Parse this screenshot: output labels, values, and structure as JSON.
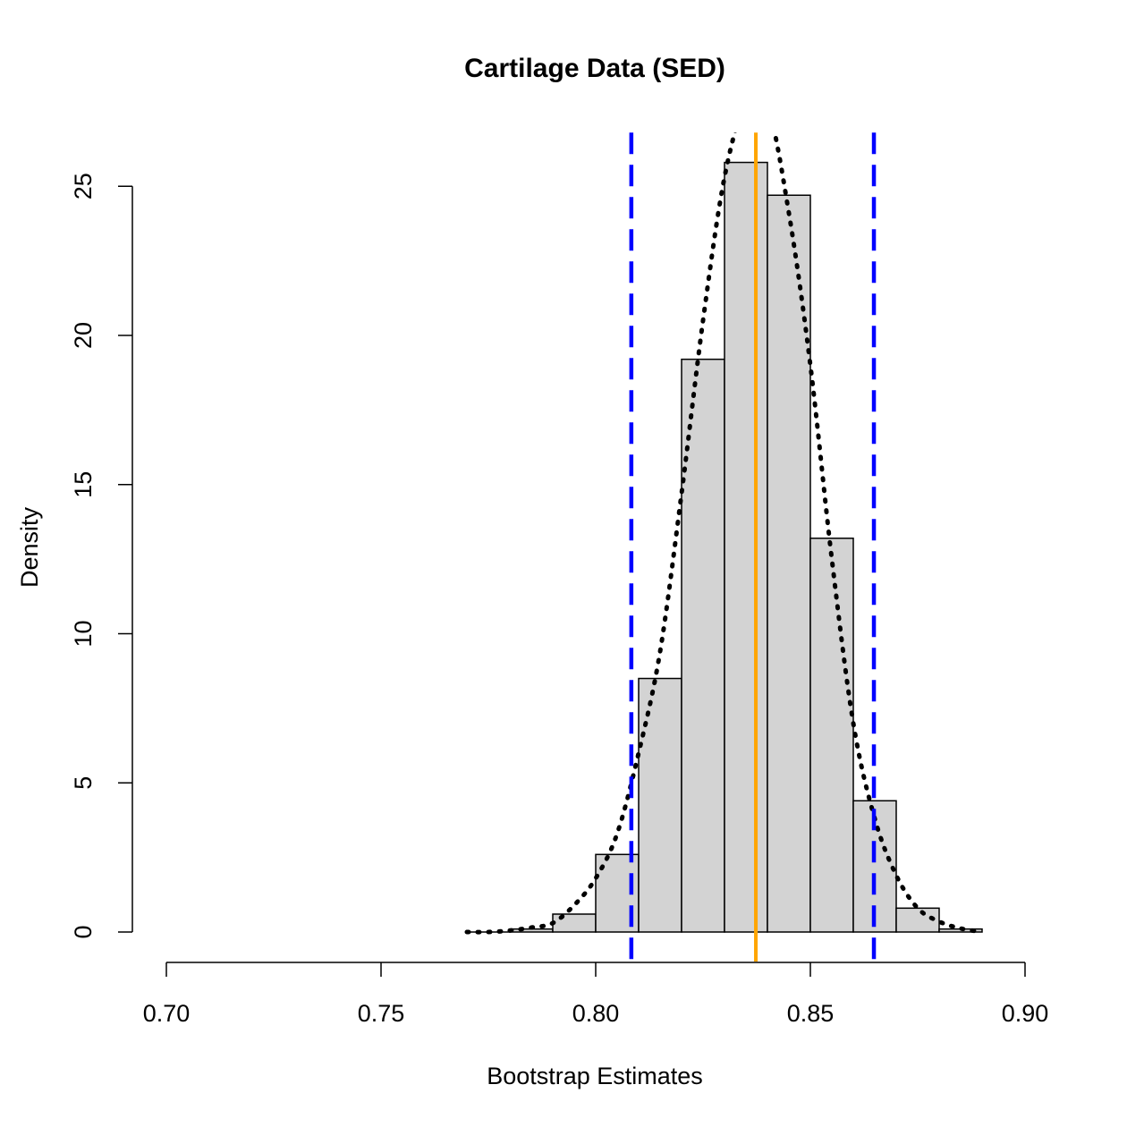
{
  "chart_data": {
    "type": "histogram",
    "title": "Cartilage Data (SED)",
    "xlabel": "Bootstrap Estimates",
    "ylabel": "Density",
    "xlim": [
      0.7,
      0.9
    ],
    "ylim": [
      0,
      26.8
    ],
    "x_ticks": [
      0.7,
      0.75,
      0.8,
      0.85,
      0.9
    ],
    "x_tick_labels": [
      "0.70",
      "0.75",
      "0.80",
      "0.85",
      "0.90"
    ],
    "y_ticks": [
      0,
      5,
      10,
      15,
      20,
      25
    ],
    "y_tick_labels": [
      "0",
      "5",
      "10",
      "15",
      "20",
      "25"
    ],
    "grid": false,
    "bins": [
      {
        "x0": 0.77,
        "x1": 0.78,
        "density": 0.0
      },
      {
        "x0": 0.78,
        "x1": 0.79,
        "density": 0.1
      },
      {
        "x0": 0.79,
        "x1": 0.8,
        "density": 0.6
      },
      {
        "x0": 0.8,
        "x1": 0.81,
        "density": 2.6
      },
      {
        "x0": 0.81,
        "x1": 0.82,
        "density": 8.5
      },
      {
        "x0": 0.82,
        "x1": 0.83,
        "density": 19.2
      },
      {
        "x0": 0.83,
        "x1": 0.84,
        "density": 25.8
      },
      {
        "x0": 0.84,
        "x1": 0.85,
        "density": 24.7
      },
      {
        "x0": 0.85,
        "x1": 0.86,
        "density": 13.2
      },
      {
        "x0": 0.86,
        "x1": 0.87,
        "density": 4.4
      },
      {
        "x0": 0.87,
        "x1": 0.88,
        "density": 0.8
      },
      {
        "x0": 0.88,
        "x1": 0.89,
        "density": 0.1
      }
    ],
    "density_curve": {
      "x": [
        0.77,
        0.775,
        0.78,
        0.785,
        0.79,
        0.795,
        0.8,
        0.805,
        0.81,
        0.815,
        0.82,
        0.825,
        0.83,
        0.835,
        0.84,
        0.845,
        0.85,
        0.855,
        0.86,
        0.865,
        0.87,
        0.875,
        0.88,
        0.885,
        0.89
      ],
      "y": [
        0.0,
        0.0,
        0.05,
        0.15,
        0.3,
        0.9,
        1.8,
        3.3,
        6.0,
        9.4,
        14.7,
        20.5,
        25.3,
        27.8,
        27.7,
        24.1,
        19.0,
        12.5,
        7.0,
        3.8,
        1.9,
        0.8,
        0.35,
        0.12,
        0.0
      ],
      "color": "#000000",
      "style": "dotted"
    },
    "reference_lines": [
      {
        "x": 0.8083,
        "color": "#0000FF",
        "style": "dashed"
      },
      {
        "x": 0.8373,
        "color": "#FFA500",
        "style": "solid"
      },
      {
        "x": 0.8648,
        "color": "#0000FF",
        "style": "dashed"
      }
    ],
    "bar_fill": "#D3D3D3",
    "bar_stroke": "#000000"
  }
}
